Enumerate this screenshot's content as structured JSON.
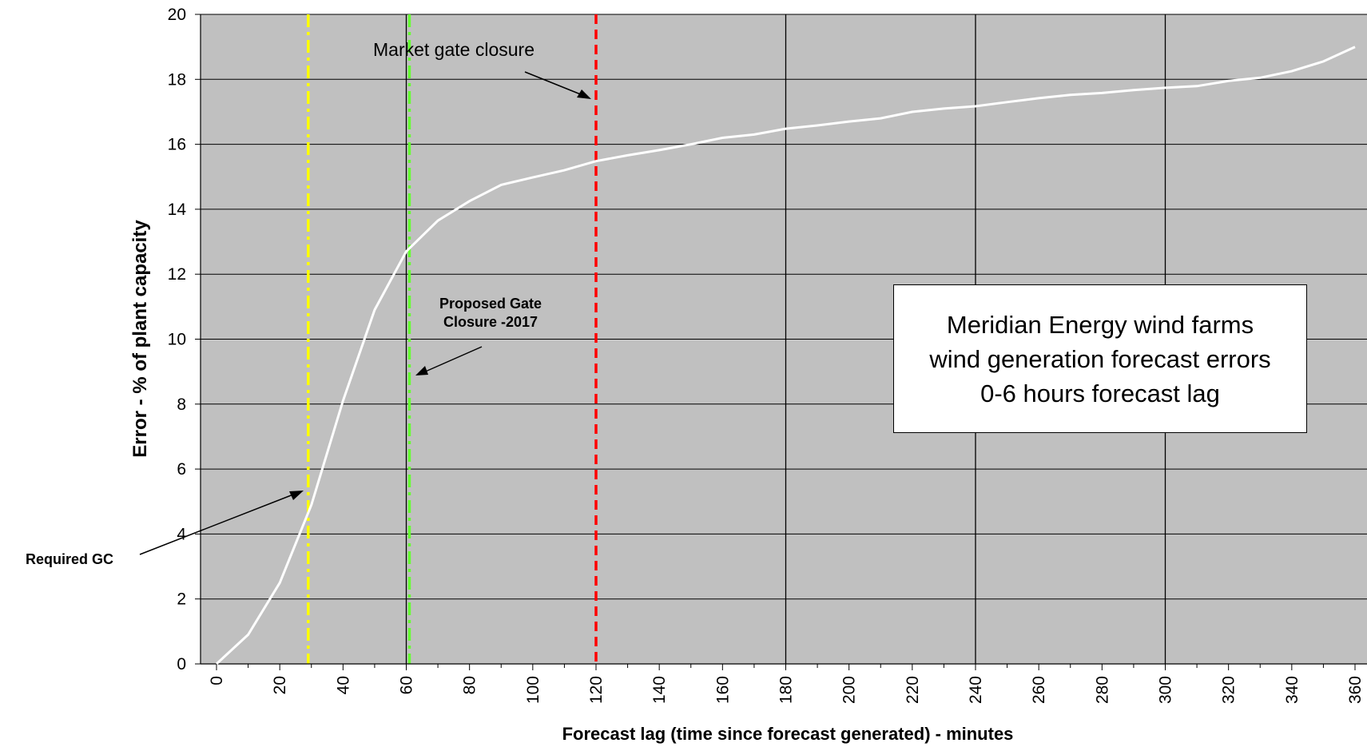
{
  "chart_data": {
    "type": "line",
    "xlabel": "Forecast lag (time since forecast generated) - minutes",
    "ylabel": "Error - % of plant capacity",
    "xlim": [
      0,
      360
    ],
    "ylim": [
      0,
      20
    ],
    "x_ticks": [
      0,
      20,
      40,
      60,
      80,
      100,
      120,
      140,
      160,
      180,
      200,
      220,
      240,
      260,
      280,
      300,
      320,
      340,
      360
    ],
    "y_ticks": [
      0,
      2,
      4,
      6,
      8,
      10,
      12,
      14,
      16,
      18,
      20
    ],
    "grid": true,
    "plot_background": "#c0c0c0",
    "series": [
      {
        "color": "#ffffff",
        "x": [
          0,
          10,
          20,
          30,
          40,
          50,
          60,
          70,
          80,
          90,
          100,
          110,
          120,
          130,
          140,
          150,
          160,
          170,
          180,
          190,
          200,
          210,
          220,
          230,
          240,
          250,
          260,
          270,
          280,
          290,
          300,
          310,
          320,
          330,
          340,
          350,
          360
        ],
        "y": [
          0.0,
          0.9,
          2.5,
          4.9,
          8.1,
          10.9,
          12.7,
          13.65,
          14.25,
          14.75,
          14.98,
          15.2,
          15.48,
          15.66,
          15.82,
          16.0,
          16.2,
          16.3,
          16.48,
          16.58,
          16.7,
          16.8,
          17.0,
          17.1,
          17.17,
          17.3,
          17.42,
          17.52,
          17.58,
          17.67,
          17.74,
          17.79,
          17.95,
          18.05,
          18.25,
          18.55,
          19.0
        ]
      }
    ],
    "vertical_lines": [
      {
        "x": 29,
        "color": "#ffff00",
        "style": "dash-dot"
      },
      {
        "x": 60,
        "color": "#000000",
        "style": "solid"
      },
      {
        "x": 61,
        "color": "#66ff33",
        "style": "dash-dot"
      },
      {
        "x": 120,
        "color": "#ff0000",
        "style": "dashed"
      },
      {
        "x": 180,
        "color": "#000000",
        "style": "solid"
      },
      {
        "x": 240,
        "color": "#000000",
        "style": "solid"
      },
      {
        "x": 300,
        "color": "#000000",
        "style": "solid"
      }
    ],
    "annotations": {
      "market_gate_closure": "Market gate closure",
      "proposed_gate_line1": "Proposed Gate",
      "proposed_gate_line2": "Closure -2017",
      "required_gc": "Required GC"
    }
  },
  "info_box": {
    "line1": "Meridian Energy wind farms",
    "line2": "wind generation forecast errors",
    "line3": "0-6 hours forecast lag"
  }
}
